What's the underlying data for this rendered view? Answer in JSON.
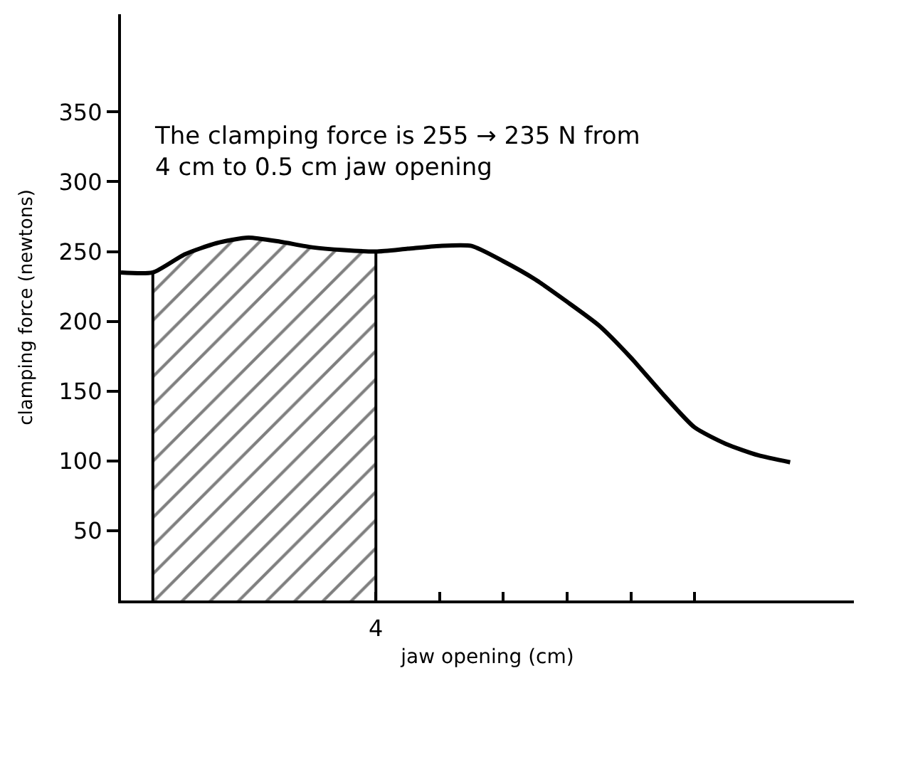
{
  "chart_data": {
    "type": "line",
    "xlabel": "jaw opening (cm)",
    "ylabel": "clamping force (newtons)",
    "categories": [
      null,
      null,
      null,
      null,
      null,
      null,
      null,
      null,
      null,
      null,
      null,
      null,
      null,
      null,
      null,
      null,
      null,
      null,
      null,
      null,
      null,
      null
    ],
    "series": [
      {
        "color": "#000000",
        "values": [
          235,
          235,
          248,
          256,
          260,
          257,
          253,
          251,
          250,
          252,
          254,
          254,
          243,
          230,
          214,
          197,
          174,
          148,
          124,
          112,
          104,
          99
        ]
      },
      {
        "type": "area",
        "color": "#000000",
        "values": [
          null,
          235,
          248,
          256,
          260,
          257,
          253,
          251,
          250,
          null,
          null,
          null,
          null,
          null,
          null,
          null,
          null,
          null,
          null,
          null,
          null,
          null
        ]
      }
    ],
    "ylim": [
      0,
      420
    ],
    "yticks": [
      50,
      100,
      150,
      200,
      250,
      300,
      350
    ],
    "annotations": [
      "The clamping force is 255 → 235 N from\n4 cm to 0.5 cm jaw opening",
      "4"
    ]
  }
}
